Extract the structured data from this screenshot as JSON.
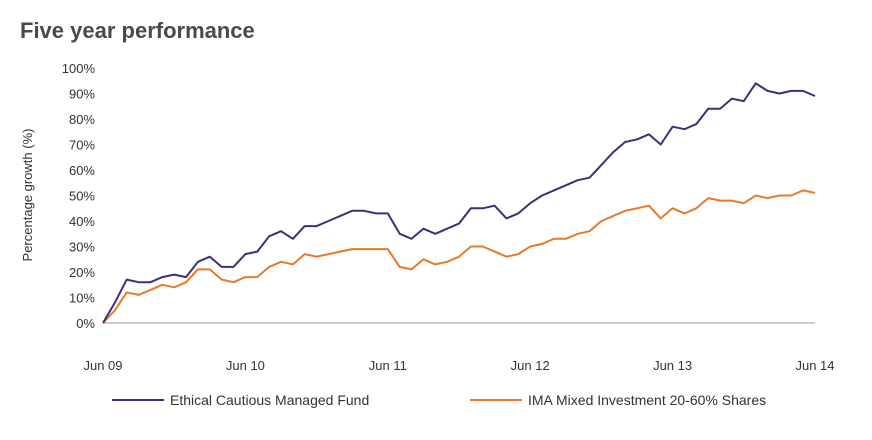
{
  "title": "Five year performance",
  "colors": {
    "ethical": "#3d2f7a",
    "ima": "#e8792a",
    "axis": "#999999"
  },
  "chart_data": {
    "type": "line",
    "title": "Five year performance",
    "xlabel": "",
    "ylabel": "Percentage growth (%)",
    "ylim": [
      0,
      100
    ],
    "xlim": [
      0,
      60
    ],
    "grid": false,
    "legend_position": "bottom",
    "y_ticks": [
      "0%",
      "10%",
      "20%",
      "30%",
      "40%",
      "50%",
      "60%",
      "70%",
      "80%",
      "90%",
      "100%"
    ],
    "x_ticks": [
      {
        "x": 0,
        "label": "Jun 09"
      },
      {
        "x": 12,
        "label": "Jun 10"
      },
      {
        "x": 24,
        "label": "Jun 11"
      },
      {
        "x": 36,
        "label": "Jun 12"
      },
      {
        "x": 48,
        "label": "Jun 13"
      },
      {
        "x": 60,
        "label": "Jun 14"
      }
    ],
    "series": [
      {
        "name": "Ethical Cautious Managed Fund",
        "color": "#3d2f7a",
        "x": [
          0,
          1,
          2,
          3,
          4,
          5,
          6,
          7,
          8,
          9,
          10,
          11,
          12,
          13,
          14,
          15,
          16,
          17,
          18,
          19,
          20,
          21,
          22,
          23,
          24,
          25,
          26,
          27,
          28,
          29,
          30,
          31,
          32,
          33,
          34,
          35,
          36,
          37,
          38,
          39,
          40,
          41,
          42,
          43,
          44,
          45,
          46,
          47,
          48,
          49,
          50,
          51,
          52,
          53,
          54,
          55,
          56,
          57,
          58,
          59,
          60
        ],
        "values": [
          0,
          8,
          17,
          16,
          16,
          18,
          19,
          18,
          24,
          26,
          22,
          22,
          27,
          28,
          34,
          36,
          33,
          38,
          38,
          40,
          42,
          44,
          44,
          43,
          43,
          35,
          33,
          37,
          35,
          37,
          39,
          45,
          45,
          46,
          41,
          43,
          47,
          50,
          52,
          54,
          56,
          57,
          62,
          67,
          71,
          72,
          74,
          70,
          77,
          76,
          78,
          84,
          84,
          88,
          87,
          94,
          91,
          90,
          91,
          91,
          89
        ]
      },
      {
        "name": "IMA Mixed Investment 20-60% Shares",
        "color": "#e8792a",
        "x": [
          0,
          1,
          2,
          3,
          4,
          5,
          6,
          7,
          8,
          9,
          10,
          11,
          12,
          13,
          14,
          15,
          16,
          17,
          18,
          19,
          20,
          21,
          22,
          23,
          24,
          25,
          26,
          27,
          28,
          29,
          30,
          31,
          32,
          33,
          34,
          35,
          36,
          37,
          38,
          39,
          40,
          41,
          42,
          43,
          44,
          45,
          46,
          47,
          48,
          49,
          50,
          51,
          52,
          53,
          54,
          55,
          56,
          57,
          58,
          59,
          60
        ],
        "values": [
          0,
          5,
          12,
          11,
          13,
          15,
          14,
          16,
          21,
          21,
          17,
          16,
          18,
          18,
          22,
          24,
          23,
          27,
          26,
          27,
          28,
          29,
          29,
          29,
          29,
          22,
          21,
          25,
          23,
          24,
          26,
          30,
          30,
          28,
          26,
          27,
          30,
          31,
          33,
          33,
          35,
          36,
          40,
          42,
          44,
          45,
          46,
          41,
          45,
          43,
          45,
          49,
          48,
          48,
          47,
          50,
          49,
          50,
          50,
          52,
          51
        ]
      }
    ]
  }
}
